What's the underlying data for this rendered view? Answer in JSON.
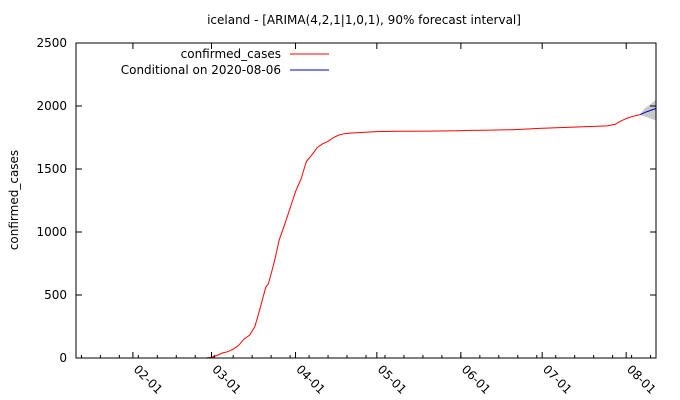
{
  "chart_data": {
    "type": "line",
    "title": "iceland -  [ARIMA(4,2,1|1,0,1), 90% forecast interval]",
    "xlabel": "",
    "ylabel": "confirmed_cases",
    "x_type": "date",
    "xlim": [
      "2020-01-11",
      "2020-08-12"
    ],
    "ylim": [
      0,
      2500
    ],
    "x_ticks": [
      "2020-02-01",
      "2020-03-01",
      "2020-04-01",
      "2020-05-01",
      "2020-06-01",
      "2020-07-01",
      "2020-08-01"
    ],
    "x_tick_labels": [
      "02-01",
      "03-01",
      "04-01",
      "05-01",
      "06-01",
      "07-01",
      "08-01"
    ],
    "y_ticks": [
      0,
      500,
      1000,
      1500,
      2000,
      2500
    ],
    "y_tick_labels": [
      "0",
      "500",
      "1000",
      "1500",
      "2000",
      "2500"
    ],
    "grid": false,
    "legend_position": "top-left",
    "series": [
      {
        "name": "confirmed_cases",
        "color": "#ff0000",
        "points": [
          [
            "2020-02-28",
            1
          ],
          [
            "2020-03-01",
            5
          ],
          [
            "2020-03-03",
            20
          ],
          [
            "2020-03-05",
            40
          ],
          [
            "2020-03-07",
            50
          ],
          [
            "2020-03-09",
            70
          ],
          [
            "2020-03-11",
            100
          ],
          [
            "2020-03-13",
            150
          ],
          [
            "2020-03-15",
            180
          ],
          [
            "2020-03-17",
            250
          ],
          [
            "2020-03-19",
            400
          ],
          [
            "2020-03-21",
            560
          ],
          [
            "2020-03-22",
            590
          ],
          [
            "2020-03-24",
            750
          ],
          [
            "2020-03-26",
            940
          ],
          [
            "2020-03-28",
            1060
          ],
          [
            "2020-03-30",
            1190
          ],
          [
            "2020-04-01",
            1320
          ],
          [
            "2020-04-03",
            1420
          ],
          [
            "2020-04-05",
            1560
          ],
          [
            "2020-04-07",
            1610
          ],
          [
            "2020-04-09",
            1670
          ],
          [
            "2020-04-11",
            1700
          ],
          [
            "2020-04-13",
            1720
          ],
          [
            "2020-04-15",
            1750
          ],
          [
            "2020-04-17",
            1770
          ],
          [
            "2020-04-19",
            1780
          ],
          [
            "2020-04-21",
            1785
          ],
          [
            "2020-04-25",
            1790
          ],
          [
            "2020-05-01",
            1797
          ],
          [
            "2020-05-10",
            1800
          ],
          [
            "2020-05-20",
            1801
          ],
          [
            "2020-05-31",
            1804
          ],
          [
            "2020-06-05",
            1806
          ],
          [
            "2020-06-10",
            1808
          ],
          [
            "2020-06-20",
            1812
          ],
          [
            "2020-06-30",
            1822
          ],
          [
            "2020-07-10",
            1830
          ],
          [
            "2020-07-20",
            1838
          ],
          [
            "2020-07-25",
            1842
          ],
          [
            "2020-07-28",
            1855
          ],
          [
            "2020-07-30",
            1880
          ],
          [
            "2020-08-01",
            1900
          ],
          [
            "2020-08-03",
            1915
          ],
          [
            "2020-08-05",
            1925
          ],
          [
            "2020-08-06",
            1930
          ]
        ]
      },
      {
        "name": "Conditional on 2020-08-06",
        "color": "#0000cc",
        "points": [
          [
            "2020-08-06",
            1930
          ],
          [
            "2020-08-08",
            1950
          ],
          [
            "2020-08-10",
            1965
          ],
          [
            "2020-08-12",
            1980
          ]
        ]
      }
    ],
    "forecast_interval": {
      "color": "#c8c8c8",
      "points": [
        [
          "2020-08-06",
          1930,
          1930
        ],
        [
          "2020-08-08",
          1915,
          1985
        ],
        [
          "2020-08-10",
          1900,
          2015
        ],
        [
          "2020-08-12",
          1885,
          2050
        ]
      ]
    }
  }
}
